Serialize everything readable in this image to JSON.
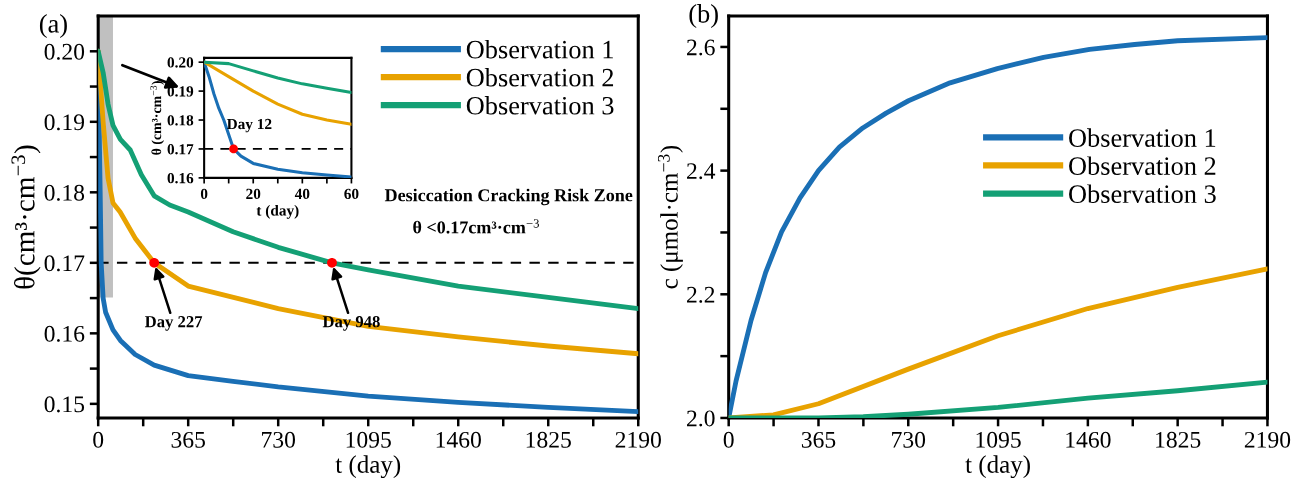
{
  "chart_data": [
    {
      "type": "line",
      "xlabel": "t (day)",
      "ylabel": "θ(cm³·cm$^{−3}$)",
      "xlim": [
        0,
        2190
      ],
      "xticks": [
        0,
        {
          "value": 182.5,
          "label": null
        },
        365,
        {
          "value": 547.5,
          "label": null
        },
        730,
        {
          "value": 912.5,
          "label": null
        },
        1095,
        {
          "value": 1277.5,
          "label": null
        },
        1460,
        {
          "value": 1642.5,
          "label": null
        },
        1825,
        {
          "value": 2007.5,
          "label": null
        },
        2190
      ],
      "ylim": [
        0.148,
        0.205
      ],
      "yticks": [
        {
          "value": 0.15,
          "label": "0.15"
        },
        {
          "value": 0.155,
          "label": null
        },
        {
          "value": 0.16,
          "label": "0.16"
        },
        {
          "value": 0.165,
          "label": null
        },
        {
          "value": 0.17,
          "label": "0.17"
        },
        {
          "value": 0.175,
          "label": null
        },
        {
          "value": 0.18,
          "label": "0.18"
        },
        {
          "value": 0.185,
          "label": null
        },
        {
          "value": 0.19,
          "label": "0.19"
        },
        {
          "value": 0.195,
          "label": null
        },
        {
          "value": 0.2,
          "label": "0.20"
        }
      ],
      "grid": false,
      "legend": "top right",
      "series": [
        {
          "name": "Observation 1",
          "color": "#1a6fb5",
          "x": [
            0,
            4,
            8,
            12,
            20,
            30,
            60,
            90,
            150,
            227,
            365,
            547,
            730,
            1095,
            1460,
            1825,
            2190
          ],
          "values": [
            0.2,
            0.189,
            0.18,
            0.17,
            0.165,
            0.163,
            0.1605,
            0.159,
            0.157,
            0.1555,
            0.154,
            0.1532,
            0.1524,
            0.1511,
            0.1502,
            0.1495,
            0.1489
          ]
        },
        {
          "name": "Observation 2",
          "color": "#e8a200",
          "x": [
            0,
            10,
            20,
            40,
            60,
            89,
            150,
            227,
            365,
            730,
            1095,
            1460,
            1825,
            2190
          ],
          "values": [
            0.2,
            0.195,
            0.19,
            0.182,
            0.1785,
            0.1772,
            0.1735,
            0.17,
            0.1667,
            0.1635,
            0.161,
            0.1595,
            0.1582,
            0.1571
          ]
        },
        {
          "name": "Observation 3",
          "color": "#14a075",
          "x": [
            0,
            20,
            40,
            60,
            90,
            130,
            175,
            227,
            290,
            365,
            547,
            730,
            948,
            1095,
            1460,
            1825,
            2190
          ],
          "values": [
            0.2,
            0.197,
            0.1925,
            0.1895,
            0.1875,
            0.186,
            0.1825,
            0.1795,
            0.1782,
            0.1772,
            0.1744,
            0.1722,
            0.17,
            0.169,
            0.1667,
            0.1651,
            0.1635
          ]
        },
        {
          "type": "scatter",
          "color": "#ff0000",
          "x": [
            227,
            948
          ],
          "values": [
            0.17,
            0.17
          ]
        }
      ],
      "ref_lines": [
        {
          "axis": "y",
          "value": 0.17,
          "color": "#000000",
          "line_style": "dashed"
        }
      ],
      "bands": [
        {
          "axis": "x",
          "from": 0,
          "to": 60,
          "color": "#c0c0c0"
        }
      ],
      "annotations": [
        "(a)",
        "Desiccation Cracking Risk Zone",
        "θ <0.17cm³·cm$^{−3}$",
        {
          "text": "Day 227",
          "x": 227,
          "y": 0.17
        },
        {
          "text": "Day 948",
          "x": 948,
          "y": 0.17
        }
      ]
    },
    {
      "type": "line",
      "xlabel": "t (day)",
      "ylabel": "θ (cm³·cm$^{−3}$)",
      "xlim": [
        0,
        60
      ],
      "xticks": [
        0,
        {
          "value": 10,
          "label": null
        },
        20,
        {
          "value": 30,
          "label": null
        },
        40,
        {
          "value": 50,
          "label": null
        },
        60
      ],
      "ylim": [
        0.16,
        0.2015
      ],
      "yticks": [
        {
          "value": 0.16,
          "label": "0.16"
        },
        {
          "value": 0.17,
          "label": "0.17"
        },
        {
          "value": 0.18,
          "label": "0.18"
        },
        {
          "value": 0.19,
          "label": "0.19"
        },
        {
          "value": 0.2,
          "label": "0.20"
        }
      ],
      "grid": false,
      "series": [
        {
          "color": "#1a6fb5",
          "x": [
            0,
            2,
            4,
            6,
            8,
            10,
            12,
            15,
            20,
            30,
            40,
            50,
            60
          ],
          "values": [
            0.2,
            0.195,
            0.189,
            0.184,
            0.18,
            0.175,
            0.17,
            0.1675,
            0.165,
            0.163,
            0.1618,
            0.161,
            0.1603
          ]
        },
        {
          "color": "#e8a200",
          "x": [
            0,
            10,
            20,
            30,
            40,
            50,
            60
          ],
          "values": [
            0.2,
            0.195,
            0.19,
            0.1855,
            0.182,
            0.18,
            0.1785
          ]
        },
        {
          "color": "#14a075",
          "x": [
            0,
            10,
            20,
            30,
            40,
            50,
            60
          ],
          "values": [
            0.2,
            0.1995,
            0.197,
            0.1945,
            0.1925,
            0.191,
            0.1895
          ]
        },
        {
          "type": "scatter",
          "color": "#ff0000",
          "x": [
            12
          ],
          "values": [
            0.17
          ]
        }
      ],
      "ref_lines": [
        {
          "axis": "y",
          "value": 0.17,
          "color": "#000000",
          "line_style": "dashed"
        }
      ],
      "annotations": [
        {
          "text": "Day 12",
          "x": 12,
          "y": 0.17
        }
      ]
    },
    {
      "type": "line",
      "xlabel": "t (day)",
      "ylabel": "c (μmol·cm$^{−3}$)",
      "xlim": [
        0,
        2190
      ],
      "xticks": [
        0,
        {
          "value": 182.5,
          "label": null
        },
        365,
        {
          "value": 547.5,
          "label": null
        },
        730,
        {
          "value": 912.5,
          "label": null
        },
        1095,
        {
          "value": 1277.5,
          "label": null
        },
        1460,
        {
          "value": 1642.5,
          "label": null
        },
        1825,
        {
          "value": 2007.5,
          "label": null
        },
        2190
      ],
      "ylim": [
        2.0,
        2.65
      ],
      "yticks": [
        {
          "value": 2.0,
          "label": "2.0"
        },
        {
          "value": 2.1,
          "label": null
        },
        {
          "value": 2.2,
          "label": "2.2"
        },
        {
          "value": 2.3,
          "label": null
        },
        {
          "value": 2.4,
          "label": "2.4"
        },
        {
          "value": 2.5,
          "label": null
        },
        {
          "value": 2.6,
          "label": "2.6"
        }
      ],
      "grid": false,
      "legend": "right",
      "series": [
        {
          "name": "Observation 1",
          "color": "#1a6fb5",
          "x": [
            0,
            30,
            91,
            150,
            215,
            290,
            365,
            450,
            545,
            640,
            731,
            900,
            1092,
            1280,
            1467,
            1650,
            1825,
            2190
          ],
          "values": [
            2.0,
            2.06,
            2.158,
            2.235,
            2.301,
            2.356,
            2.4,
            2.438,
            2.469,
            2.493,
            2.513,
            2.542,
            2.565,
            2.583,
            2.596,
            2.604,
            2.61,
            2.615
          ]
        },
        {
          "name": "Observation 2",
          "color": "#e8a200",
          "x": [
            0,
            182,
            365,
            730,
            1095,
            1460,
            1825,
            2190
          ],
          "values": [
            2.0,
            2.005,
            2.023,
            2.079,
            2.133,
            2.177,
            2.211,
            2.241
          ]
        },
        {
          "name": "Observation 3",
          "color": "#14a075",
          "x": [
            0,
            365,
            547,
            730,
            1095,
            1460,
            1825,
            2190
          ],
          "values": [
            2.0,
            2.0,
            2.002,
            2.006,
            2.017,
            2.032,
            2.044,
            2.058
          ]
        }
      ],
      "annotations": [
        "(b)"
      ]
    }
  ]
}
